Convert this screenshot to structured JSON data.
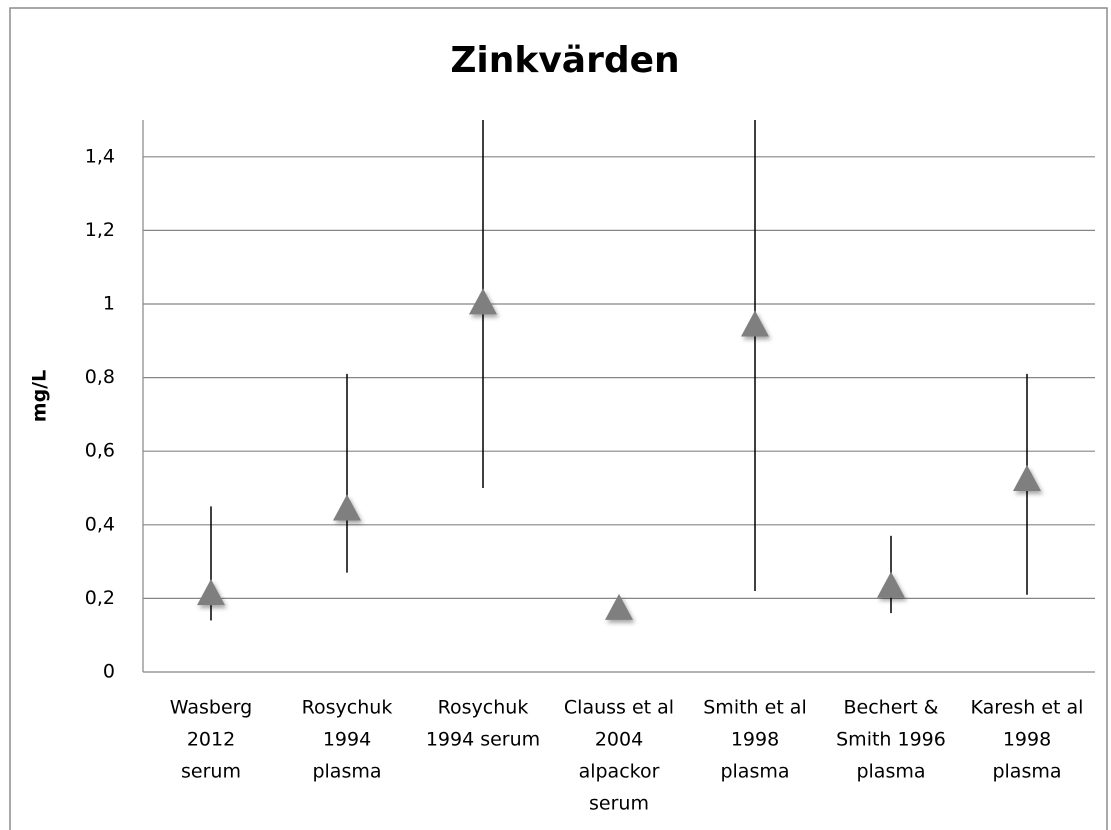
{
  "chart_data": {
    "type": "range-marker",
    "title": "Zinkvärden",
    "y_label": "mg/L",
    "categories": [
      [
        "Wasberg",
        "2012",
        "serum"
      ],
      [
        "Rosychuk",
        "1994",
        "plasma"
      ],
      [
        "Rosychuk",
        "1994 serum"
      ],
      [
        "Clauss et al",
        "2004",
        "alpackor",
        "serum"
      ],
      [
        "Smith et al",
        "1998",
        "plasma"
      ],
      [
        "Bechert &",
        "Smith 1996",
        "plasma"
      ],
      [
        "Karesh et al",
        "1998",
        "plasma"
      ]
    ],
    "series": [
      {
        "color": "#7f7f7f",
        "values": [
          0.21,
          0.44,
          1.0,
          0.17,
          0.94,
          0.23,
          0.52
        ],
        "high": [
          0.45,
          0.81,
          1.5,
          null,
          1.5,
          0.37,
          0.81
        ],
        "low": [
          0.14,
          0.27,
          0.5,
          null,
          0.22,
          0.16,
          0.21
        ]
      }
    ],
    "ylim": [
      0,
      1.5
    ],
    "yticks": [
      0,
      {
        "value": 0.2,
        "label": "0,2"
      },
      {
        "value": 0.4,
        "label": "0,4"
      },
      {
        "value": 0.6,
        "label": "0,6"
      },
      {
        "value": 0.8,
        "label": "0,8"
      },
      1,
      {
        "value": 1.2,
        "label": "1,2"
      },
      {
        "value": 1.4,
        "label": "1,4"
      }
    ],
    "grid": true
  }
}
